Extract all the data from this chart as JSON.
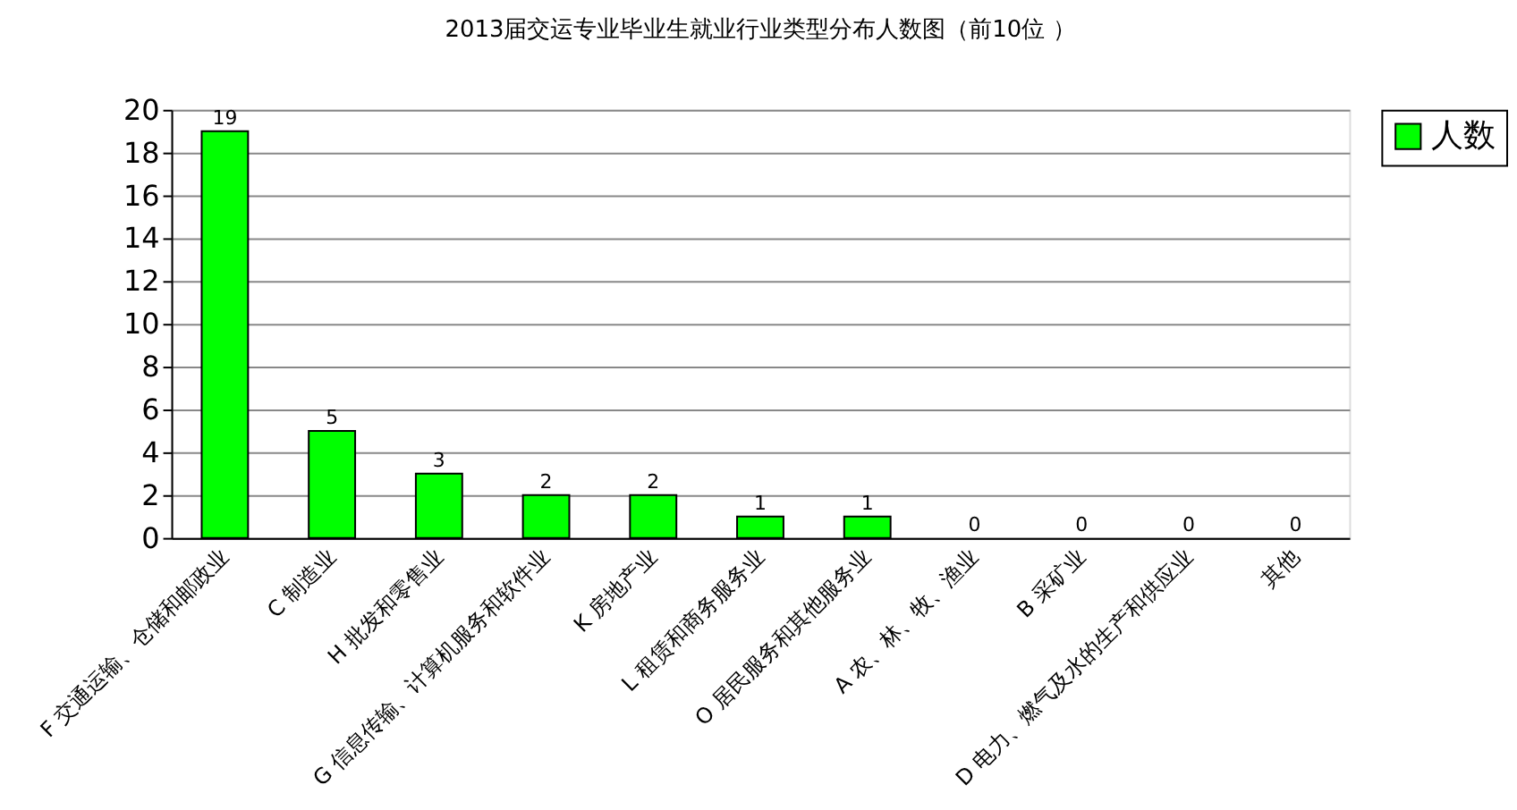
{
  "chart_data": {
    "type": "bar",
    "title": "2013届交运专业毕业生就业行业类型分布人数图（前10位 ）",
    "categories": [
      "F 交通运输、仓储和邮政业",
      "C 制造业",
      "H 批发和零售业",
      "G 信息传输、计算机服务和软件业",
      "K 房地产业",
      "L 租赁和商务服务业",
      "O 居民服务和其他服务业",
      "A 农、林、牧、渔业",
      "B 采矿业",
      "D 电力、燃气及水的生产和供应业",
      "其他"
    ],
    "series": [
      {
        "name": "人数",
        "color": "#00ff00",
        "values": [
          19,
          5,
          3,
          2,
          2,
          1,
          1,
          0,
          0,
          0,
          0
        ]
      }
    ],
    "ylim": [
      0,
      20
    ],
    "yticks": [
      0,
      2,
      4,
      6,
      8,
      10,
      12,
      14,
      16,
      18,
      20
    ],
    "grid": "y",
    "legend": "right",
    "data_labels": true
  }
}
